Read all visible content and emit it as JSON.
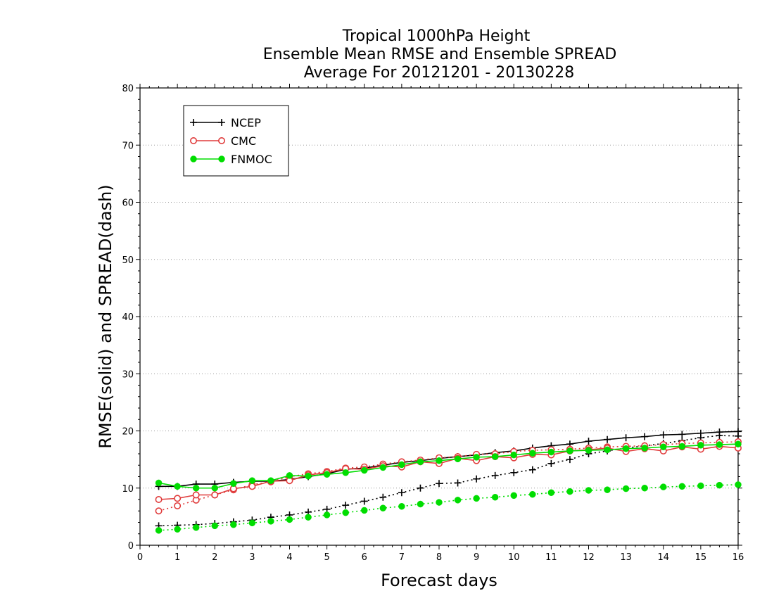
{
  "chart_data": {
    "type": "line",
    "title_lines": [
      "Tropical 1000hPa Height",
      "Ensemble Mean RMSE and Ensemble SPREAD",
      "Average For 20121201 - 20130228"
    ],
    "xlabel": "Forecast days",
    "ylabel": "RMSE(solid) and SPREAD(dash)",
    "xlim": [
      0,
      16
    ],
    "ylim": [
      0,
      80
    ],
    "xticks": [
      "0",
      "1",
      "2",
      "3",
      "4",
      "5",
      "6",
      "7",
      "8",
      "9",
      "10",
      "11",
      "12",
      "13",
      "14",
      "15",
      "16"
    ],
    "yticks": [
      "0",
      "10",
      "20",
      "30",
      "40",
      "50",
      "60",
      "70",
      "80"
    ],
    "grid": "horizontal dotted",
    "legend_position": "top-left",
    "x": [
      0.5,
      1,
      1.5,
      2,
      2.5,
      3,
      3.5,
      4,
      4.5,
      5,
      5.5,
      6,
      6.5,
      7,
      7.5,
      8,
      8.5,
      9,
      9.5,
      10,
      10.5,
      11,
      11.5,
      12,
      12.5,
      13,
      13.5,
      14,
      14.5,
      15,
      15.5,
      16
    ],
    "series": [
      {
        "name": "NCEP",
        "color": "#000000",
        "marker": "plus",
        "rmse": [
          10.3,
          10.3,
          10.7,
          10.7,
          11.0,
          11.2,
          11.2,
          11.5,
          12.0,
          12.5,
          13.3,
          13.5,
          14.0,
          14.5,
          14.8,
          15.2,
          15.5,
          15.8,
          16.2,
          16.5,
          17.0,
          17.4,
          17.7,
          18.2,
          18.5,
          18.8,
          19.0,
          19.3,
          19.4,
          19.6,
          19.8,
          19.9
        ],
        "spread": [
          3.4,
          3.5,
          3.6,
          3.8,
          4.1,
          4.4,
          4.9,
          5.3,
          5.8,
          6.3,
          7.0,
          7.7,
          8.4,
          9.2,
          10.0,
          10.8,
          10.9,
          11.6,
          12.2,
          12.7,
          13.2,
          14.3,
          15.0,
          16.0,
          16.5,
          17.0,
          17.4,
          17.8,
          18.3,
          18.8,
          19.2,
          19.1
        ]
      },
      {
        "name": "CMC",
        "color": "#e03c3c",
        "marker": "open-circle",
        "rmse": [
          8.0,
          8.2,
          8.8,
          8.8,
          9.9,
          10.3,
          11.2,
          11.3,
          12.3,
          12.7,
          13.4,
          13.3,
          13.9,
          13.7,
          14.6,
          14.3,
          15.2,
          14.8,
          15.5,
          15.3,
          15.9,
          15.8,
          16.5,
          16.7,
          17.0,
          16.4,
          16.9,
          16.5,
          17.2,
          16.8,
          17.3,
          17.0
        ],
        "spread": [
          6.0,
          6.9,
          7.9,
          8.8,
          9.7,
          10.6,
          11.1,
          12.0,
          12.5,
          12.9,
          13.5,
          13.7,
          14.2,
          14.6,
          14.9,
          15.3,
          15.5,
          15.9,
          16.0,
          16.4,
          16.6,
          16.7,
          16.8,
          17.0,
          17.2,
          17.3,
          17.4,
          17.6,
          17.8,
          17.9,
          18.0,
          18.1
        ]
      },
      {
        "name": "FNMOC",
        "color": "#00dd00",
        "marker": "filled-circle",
        "rmse": [
          10.9,
          10.3,
          10.0,
          10.0,
          10.8,
          11.3,
          11.3,
          12.2,
          12.1,
          12.4,
          12.7,
          13.1,
          13.6,
          14.1,
          14.6,
          14.8,
          15.1,
          15.4,
          15.5,
          15.8,
          16.1,
          16.3,
          16.5,
          16.6,
          16.7,
          16.9,
          17.0,
          17.2,
          17.3,
          17.5,
          17.6,
          17.7
        ],
        "spread": [
          2.6,
          2.8,
          3.1,
          3.4,
          3.6,
          3.9,
          4.2,
          4.5,
          4.9,
          5.3,
          5.7,
          6.1,
          6.5,
          6.8,
          7.2,
          7.5,
          7.9,
          8.2,
          8.4,
          8.7,
          8.9,
          9.2,
          9.4,
          9.6,
          9.7,
          9.9,
          10.0,
          10.2,
          10.3,
          10.4,
          10.5,
          10.6
        ]
      }
    ]
  }
}
